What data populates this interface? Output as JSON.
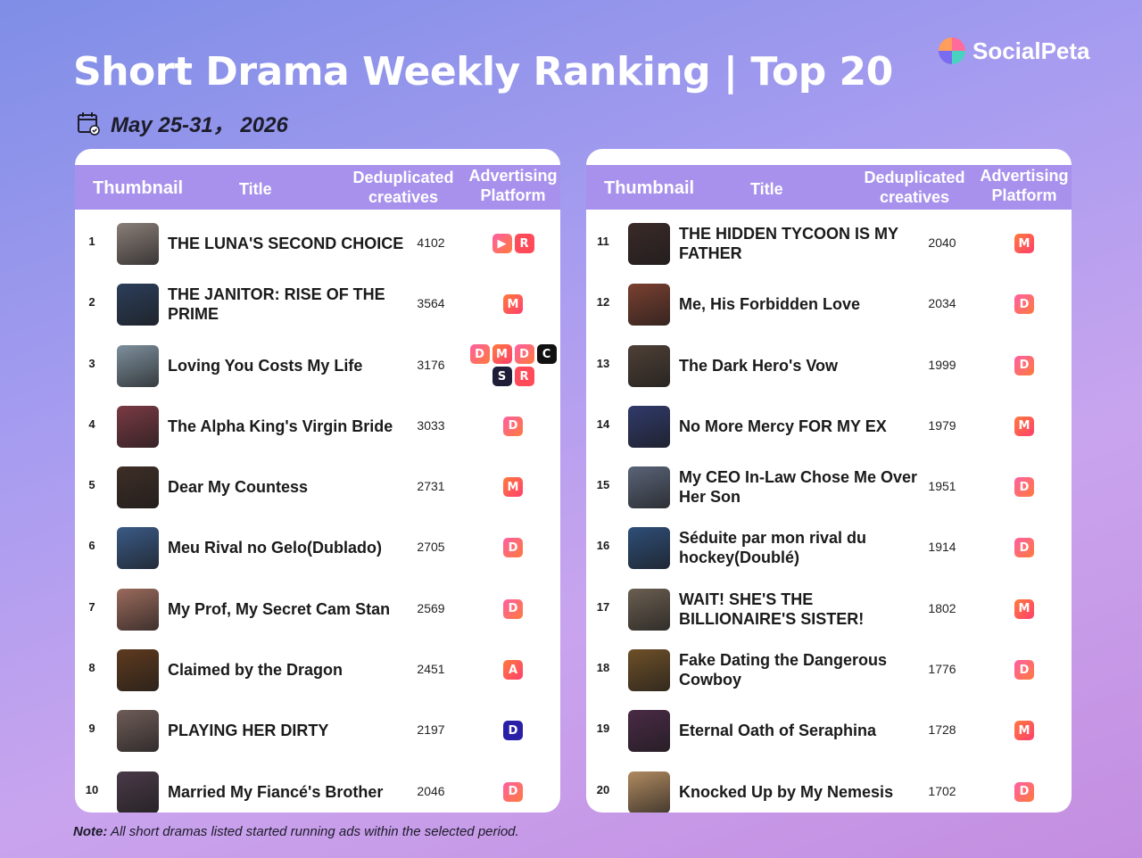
{
  "title": "Short Drama Weekly Ranking | Top 20",
  "date": "May 25-31， 2026",
  "brand": "SocialPeta",
  "headers": {
    "thumbnail": "Thumbnail",
    "title": "Title",
    "dedup_line1": "Deduplicated",
    "dedup_line2": "creatives",
    "platform_line1": "Advertising",
    "platform_line2": "Platform"
  },
  "note_label": "Note:",
  "note_text": " All short dramas listed started running ads within the selected period.",
  "left_rows": [
    {
      "rank": "1",
      "title": "THE LUNA'S SECOND CHOICE",
      "count": "4102",
      "thumb": "#8a7e78",
      "platforms": [
        {
          "icon": "play-icon",
          "glyph": "▶",
          "color": "pink"
        },
        {
          "icon": "r-icon",
          "glyph": "R",
          "color": "red"
        }
      ]
    },
    {
      "rank": "2",
      "title": "THE JANITOR: RISE OF THE PRIME",
      "count": "3564",
      "thumb": "#2c3e5a",
      "platforms": [
        {
          "icon": "m-icon",
          "glyph": "M",
          "color": "orange"
        }
      ]
    },
    {
      "rank": "3",
      "title": "Loving You Costs My Life",
      "count": "3176",
      "thumb": "#7d8f9c",
      "platforms": [
        {
          "icon": "d-icon",
          "glyph": "D",
          "color": "pink"
        },
        {
          "icon": "m-icon",
          "glyph": "M",
          "color": "orange"
        },
        {
          "icon": "d-icon",
          "glyph": "D",
          "color": "pink"
        },
        {
          "icon": "c-icon",
          "glyph": "C",
          "color": "black"
        },
        {
          "icon": "s-icon",
          "glyph": "S",
          "color": "dark"
        },
        {
          "icon": "r-icon",
          "glyph": "R",
          "color": "red"
        }
      ]
    },
    {
      "rank": "4",
      "title": "The Alpha King's Virgin Bride",
      "count": "3033",
      "thumb": "#7a3a44",
      "platforms": [
        {
          "icon": "d-icon",
          "glyph": "D",
          "color": "pink"
        }
      ]
    },
    {
      "rank": "5",
      "title": "Dear My Countess",
      "count": "2731",
      "thumb": "#3e2e26",
      "platforms": [
        {
          "icon": "m-icon",
          "glyph": "M",
          "color": "orange"
        }
      ]
    },
    {
      "rank": "6",
      "title": "Meu Rival no Gelo(Dublado)",
      "count": "2705",
      "thumb": "#3a5a86",
      "platforms": [
        {
          "icon": "d-icon",
          "glyph": "D",
          "color": "pink"
        }
      ]
    },
    {
      "rank": "7",
      "title": "My Prof, My Secret Cam Stan",
      "count": "2569",
      "thumb": "#9a6a5c",
      "platforms": [
        {
          "icon": "d-icon",
          "glyph": "D",
          "color": "pink"
        }
      ]
    },
    {
      "rank": "8",
      "title": "Claimed by the Dragon",
      "count": "2451",
      "thumb": "#5e3a1e",
      "platforms": [
        {
          "icon": "a-icon",
          "glyph": "A",
          "color": "orange"
        }
      ]
    },
    {
      "rank": "9",
      "title": "PLAYING HER DIRTY",
      "count": "2197",
      "thumb": "#6e5c58",
      "platforms": [
        {
          "icon": "id-icon",
          "glyph": "D",
          "color": "indigo"
        }
      ]
    },
    {
      "rank": "10",
      "title": "Married My Fiancé's Brother",
      "count": "2046",
      "thumb": "#4a3a48",
      "platforms": [
        {
          "icon": "d-icon",
          "glyph": "D",
          "color": "pink"
        }
      ]
    }
  ],
  "right_rows": [
    {
      "rank": "11",
      "title": "THE HIDDEN TYCOON IS MY FATHER",
      "count": "2040",
      "thumb": "#3a2a28",
      "platforms": [
        {
          "icon": "m-icon",
          "glyph": "M",
          "color": "orange"
        }
      ]
    },
    {
      "rank": "12",
      "title": "Me, His Forbidden Love",
      "count": "2034",
      "thumb": "#7a4030",
      "platforms": [
        {
          "icon": "d-icon",
          "glyph": "D",
          "color": "pink"
        }
      ]
    },
    {
      "rank": "13",
      "title": "The Dark Hero's Vow",
      "count": "1999",
      "thumb": "#4e4036",
      "platforms": [
        {
          "icon": "d-icon",
          "glyph": "D",
          "color": "pink"
        }
      ]
    },
    {
      "rank": "14",
      "title": "No More Mercy FOR MY EX",
      "count": "1979",
      "thumb": "#303a6a",
      "platforms": [
        {
          "icon": "m-icon",
          "glyph": "M",
          "color": "orange"
        }
      ]
    },
    {
      "rank": "15",
      "title": "My CEO In-Law Chose Me Over Her Son",
      "count": "1951",
      "thumb": "#5a6478",
      "platforms": [
        {
          "icon": "d-icon",
          "glyph": "D",
          "color": "pink"
        }
      ]
    },
    {
      "rank": "16",
      "title": "Séduite par mon rival du hockey(Doublé)",
      "count": "1914",
      "thumb": "#2e4e78",
      "platforms": [
        {
          "icon": "d-icon",
          "glyph": "D",
          "color": "pink"
        }
      ]
    },
    {
      "rank": "17",
      "title": "WAIT! SHE'S THE BILLIONAIRE'S SISTER!",
      "count": "1802",
      "thumb": "#6a5e50",
      "platforms": [
        {
          "icon": "m-icon",
          "glyph": "M",
          "color": "orange"
        }
      ]
    },
    {
      "rank": "18",
      "title": "Fake Dating the Dangerous Cowboy",
      "count": "1776",
      "thumb": "#6e5028",
      "platforms": [
        {
          "icon": "d-icon",
          "glyph": "D",
          "color": "pink"
        }
      ]
    },
    {
      "rank": "19",
      "title": "Eternal Oath of Seraphina",
      "count": "1728",
      "thumb": "#4a2a46",
      "platforms": [
        {
          "icon": "m-icon",
          "glyph": "M",
          "color": "orange"
        }
      ]
    },
    {
      "rank": "20",
      "title": "Knocked Up by My Nemesis",
      "count": "1702",
      "thumb": "#b08a60",
      "platforms": [
        {
          "icon": "d-icon",
          "glyph": "D",
          "color": "pink"
        }
      ]
    }
  ]
}
